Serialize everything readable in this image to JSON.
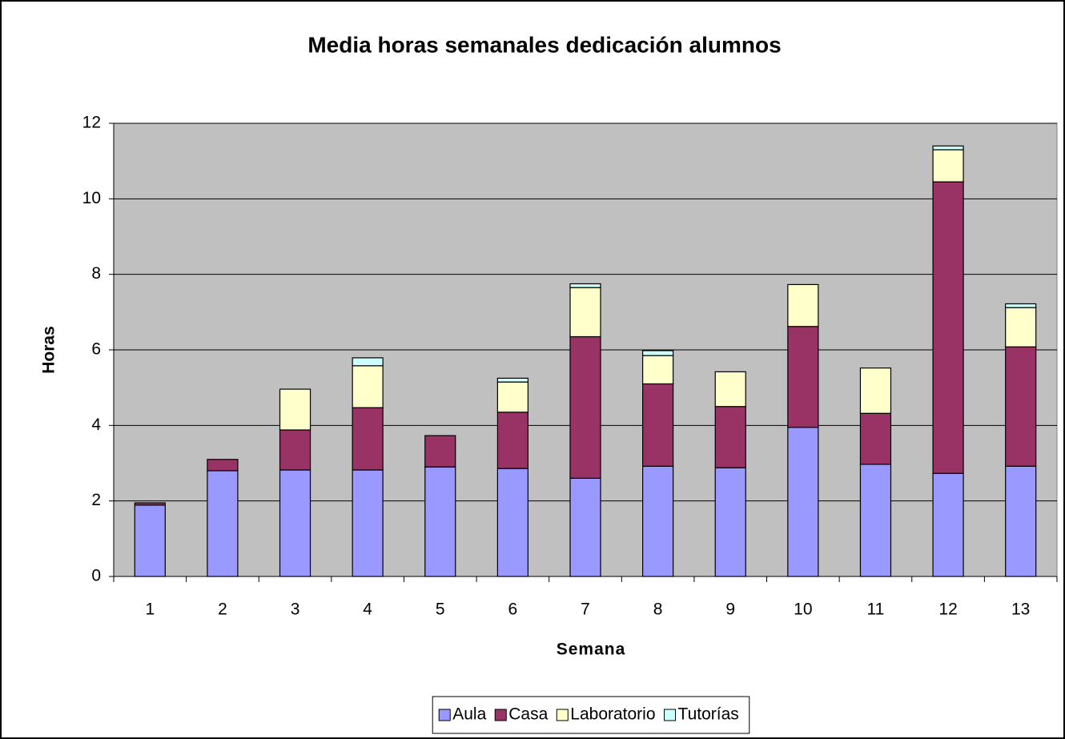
{
  "chart_data": {
    "type": "stacked_bar",
    "title": "Media horas semanales dedicación alumnos",
    "x_label": "Semana",
    "y_label": "Horas",
    "categories": [
      "1",
      "2",
      "3",
      "4",
      "5",
      "6",
      "7",
      "8",
      "9",
      "10",
      "11",
      "12",
      "13"
    ],
    "series": [
      {
        "name": "Aula",
        "color": "#9999ff",
        "values": [
          1.89,
          2.8,
          2.82,
          2.82,
          2.9,
          2.86,
          2.6,
          2.92,
          2.88,
          3.95,
          2.97,
          2.73,
          2.92
        ]
      },
      {
        "name": "Casa",
        "color": "#993366",
        "values": [
          0.06,
          0.3,
          1.06,
          1.65,
          0.83,
          1.49,
          3.75,
          2.18,
          1.62,
          2.67,
          1.35,
          7.72,
          3.16
        ]
      },
      {
        "name": "Laboratorio",
        "color": "#ffffcc",
        "values": [
          0,
          0,
          1.08,
          1.11,
          0,
          0.8,
          1.3,
          0.75,
          0.92,
          1.11,
          1.2,
          0.85,
          1.04
        ]
      },
      {
        "name": "Tutorías",
        "color": "#ccffff",
        "values": [
          0,
          0,
          0,
          0.21,
          0,
          0.1,
          0.1,
          0.13,
          0,
          0,
          0,
          0.1,
          0.1
        ]
      }
    ],
    "ylim": [
      0,
      12
    ],
    "yticks": [
      0,
      2,
      4,
      6,
      8,
      10,
      12
    ],
    "grid": true,
    "legend": "bottom"
  }
}
